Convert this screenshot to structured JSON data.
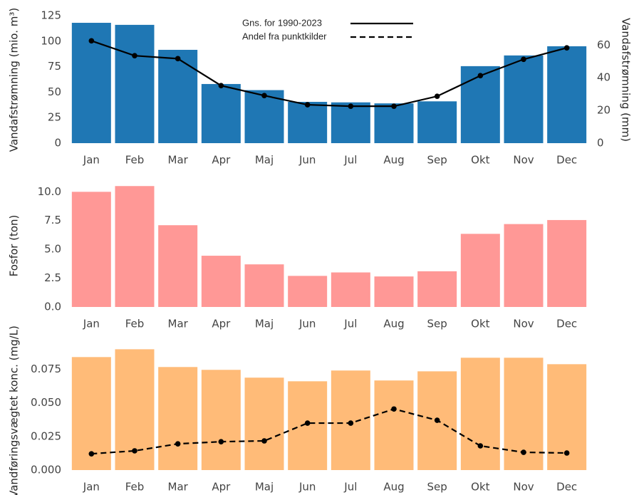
{
  "chart_data": [
    {
      "type": "bar",
      "categories": [
        "Jan",
        "Feb",
        "Mar",
        "Apr",
        "Maj",
        "Jun",
        "Jul",
        "Aug",
        "Sep",
        "Okt",
        "Nov",
        "Dec"
      ],
      "values": [
        118,
        116,
        91.5,
        58,
        52,
        40.5,
        40,
        39,
        41,
        75.5,
        86,
        95
      ],
      "color": "#1f77b4",
      "ylabel": "Vandafstrømning (mio. m³)",
      "y2label": "Vandafstrømning (mm)",
      "ylim": [
        0,
        125
      ],
      "yticks": [
        0,
        25,
        50,
        75,
        100,
        125
      ],
      "y2lim": [
        0,
        78
      ],
      "y2ticks": [
        0,
        20,
        40,
        60
      ],
      "series": [
        {
          "name": "Gns. for 1990-2023",
          "type": "line",
          "axis": "y2",
          "color": "#000000",
          "dash": false,
          "values": [
            62.6,
            53.5,
            51.7,
            35.2,
            29.1,
            23.5,
            22.6,
            22.6,
            28.7,
            41.3,
            51.3,
            58.3
          ]
        }
      ],
      "legend": "upper center"
    },
    {
      "type": "bar",
      "categories": [
        "Jan",
        "Feb",
        "Mar",
        "Apr",
        "Maj",
        "Jun",
        "Jul",
        "Aug",
        "Sep",
        "Okt",
        "Nov",
        "Dec"
      ],
      "values": [
        10.0,
        10.5,
        7.1,
        4.45,
        3.7,
        2.7,
        3.0,
        2.65,
        3.1,
        6.35,
        7.2,
        7.55
      ],
      "color": "#ff9896",
      "ylabel": "Fosfor (ton)",
      "ylim": [
        0,
        10.7
      ],
      "yticks": [
        {
          "value": 0,
          "label": "0.0"
        },
        {
          "value": 2.5,
          "label": "2.5"
        },
        {
          "value": 5,
          "label": "5.0"
        },
        {
          "value": 7.5,
          "label": "7.5"
        },
        {
          "value": 10,
          "label": "10.0"
        }
      ]
    },
    {
      "type": "bar",
      "categories": [
        "Jan",
        "Feb",
        "Mar",
        "Apr",
        "Maj",
        "Jun",
        "Jul",
        "Aug",
        "Sep",
        "Okt",
        "Nov",
        "Dec"
      ],
      "values": [
        0.084,
        0.0898,
        0.0766,
        0.0745,
        0.0687,
        0.066,
        0.074,
        0.0666,
        0.0734,
        0.0835,
        0.0835,
        0.0787
      ],
      "color": "#ffbb78",
      "ylabel": "Vandføringsvægtet konc. (mg/L)",
      "ylim": [
        0,
        0.09
      ],
      "yticks": [
        {
          "value": 0,
          "label": "0.000"
        },
        {
          "value": 0.025,
          "label": "0.025"
        },
        {
          "value": 0.05,
          "label": "0.050"
        },
        {
          "value": 0.075,
          "label": "0.075"
        }
      ],
      "series": [
        {
          "name": "Andel fra punktkilder",
          "type": "line",
          "color": "#000000",
          "dash": true,
          "values": [
            0.0121,
            0.0143,
            0.0195,
            0.0211,
            0.0217,
            0.0349,
            0.0349,
            0.0454,
            0.037,
            0.018,
            0.0132,
            0.0127
          ]
        }
      ]
    }
  ]
}
